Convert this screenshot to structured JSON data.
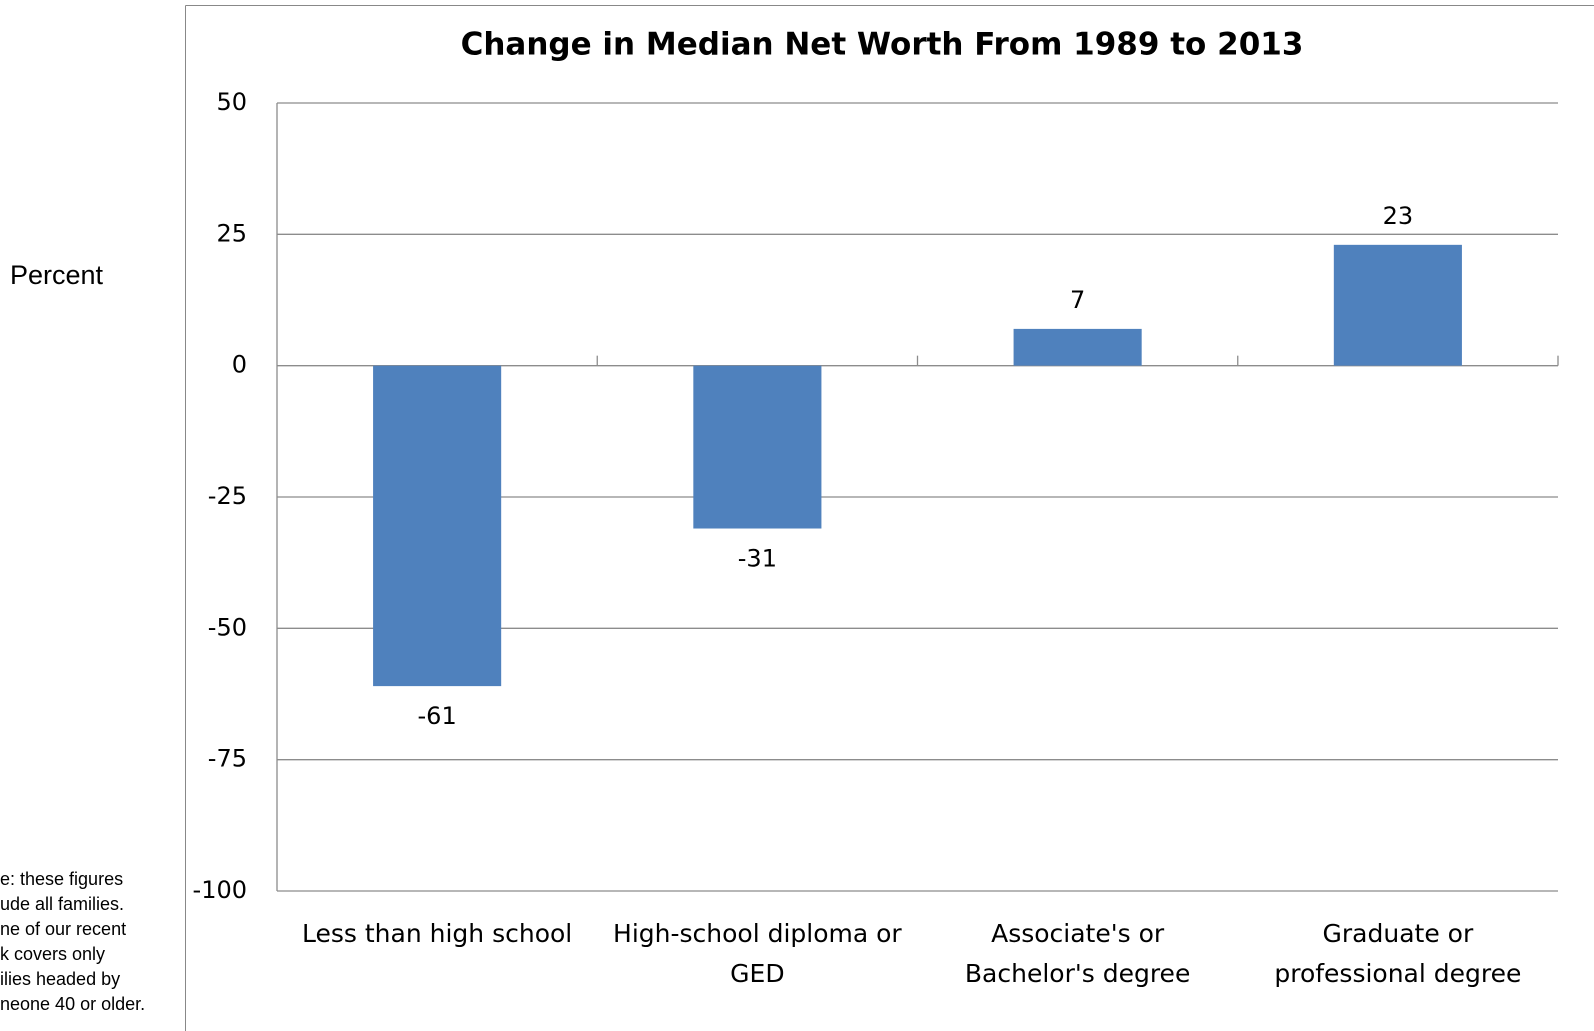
{
  "chart_data": {
    "type": "bar",
    "title": "Change in Median Net Worth From 1989 to 2013",
    "y_label": "Percent",
    "annotations": [
      "e: these figures",
      "ude all families.",
      "ne of our recent",
      "k covers only",
      "ilies headed by",
      "neone 40 or older."
    ],
    "categories": [
      "Less than high school",
      "High-school diploma or\nGED",
      "Associate's or\nBachelor's degree",
      "Graduate or\nprofessional degree"
    ],
    "values": [
      -61,
      -31,
      7,
      23
    ],
    "color": "#4f81bd",
    "ylim": [
      -100,
      50
    ],
    "yticks": [
      -100,
      -75,
      -50,
      -25,
      0,
      25,
      50
    ],
    "grid": true
  }
}
